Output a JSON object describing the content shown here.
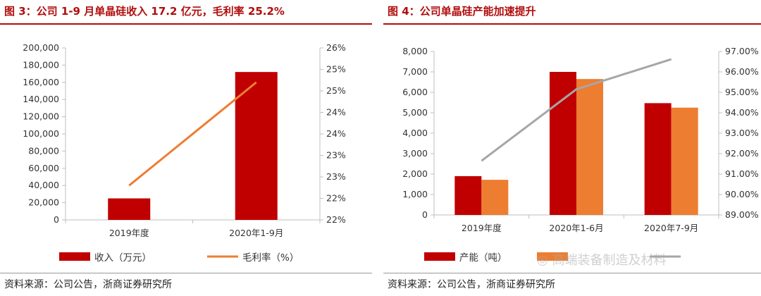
{
  "left": {
    "title": "图 3：公司 1-9 月单晶硅收入 17.2 亿元，毛利率 25.2%",
    "source": "资料来源：公司公告，浙商证券研究所",
    "chart_data": {
      "type": "bar+line",
      "categories": [
        "2019年度",
        "2020年1-9月"
      ],
      "series": [
        {
          "name": "收入（万元）",
          "type": "bar",
          "axis": "left",
          "color": "#c00000",
          "values": [
            25000,
            172000
          ]
        },
        {
          "name": "毛利率（%）",
          "type": "line",
          "axis": "right",
          "color": "#ed7d31",
          "values": [
            22.8,
            25.2
          ]
        }
      ],
      "y_left": {
        "min": 0,
        "max": 200000,
        "step": 20000,
        "tick_labels": [
          "0",
          "20,000",
          "40,000",
          "60,000",
          "80,000",
          "100,000",
          "120,000",
          "140,000",
          "160,000",
          "180,000",
          "200,000"
        ]
      },
      "y_right": {
        "min": 22,
        "max": 26,
        "step": 0.5,
        "tick_labels": [
          "22%",
          "22%",
          "23%",
          "23%",
          "24%",
          "24%",
          "25%",
          "25%",
          "26%"
        ]
      },
      "legend_position": "bottom",
      "grid": false
    }
  },
  "right": {
    "title": "图 4：公司单晶硅产能加速提升",
    "source": "资料来源：公司公告，浙商证券研究所",
    "chart_data": {
      "type": "bar+line",
      "categories": [
        "2019年度",
        "2020年1-6月",
        "2020年7-9月"
      ],
      "series": [
        {
          "name": "产能（吨）",
          "type": "bar",
          "axis": "left",
          "color": "#c00000",
          "values": [
            1900,
            7000,
            5470
          ]
        },
        {
          "name": "",
          "type": "bar",
          "axis": "left",
          "color": "#ed7d31",
          "values": [
            1720,
            6650,
            5250
          ]
        },
        {
          "name": "",
          "type": "line",
          "axis": "right",
          "color": "#a6a6a6",
          "values": [
            91.65,
            95.15,
            96.62
          ]
        }
      ],
      "y_left": {
        "min": 0,
        "max": 8000,
        "step": 1000,
        "tick_labels": [
          "0",
          "1,000",
          "2,000",
          "3,000",
          "4,000",
          "5,000",
          "6,000",
          "7,000",
          "8,000"
        ]
      },
      "y_right": {
        "min": 89,
        "max": 97,
        "step": 1,
        "tick_labels": [
          "89.00%",
          "90.00%",
          "91.00%",
          "92.00%",
          "93.00%",
          "94.00%",
          "95.00%",
          "96.00%",
          "97.00%"
        ]
      },
      "legend_position": "bottom",
      "grid": false
    },
    "legend_partial": "产能（吨）",
    "watermark": "高端装备制造及材料"
  }
}
